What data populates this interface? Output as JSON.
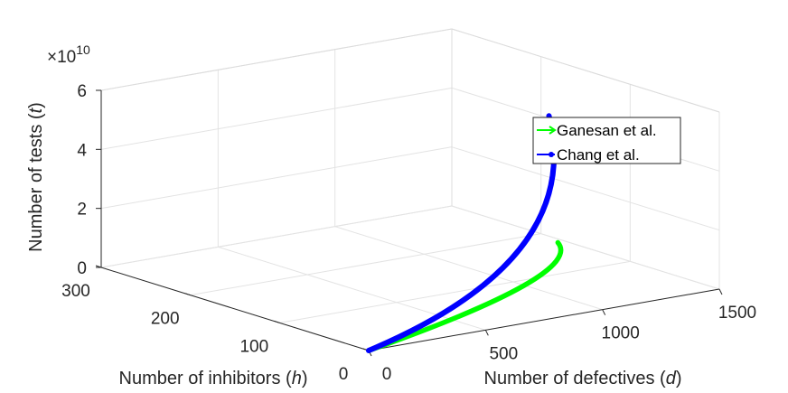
{
  "chart_data": {
    "type": "line",
    "projection": "3d",
    "exponent_label": {
      "prefix": "×10",
      "exponent": "10"
    },
    "xlabel": {
      "pre": "Number of defectives (",
      "var": "d",
      "post": ")"
    },
    "ylabel": {
      "pre": "Number of inhibitors (",
      "var": "h",
      "post": ")"
    },
    "zlabel": {
      "pre": "Number of tests (",
      "var": "t",
      "post": ")"
    },
    "xlim": [
      0,
      1500
    ],
    "ylim": [
      0,
      300
    ],
    "zlim": [
      0,
      6
    ],
    "xticks": [
      "0",
      "500",
      "1000",
      "1500"
    ],
    "yticks": [
      "0",
      "100",
      "200",
      "300"
    ],
    "zticks": [
      "0",
      "2",
      "4",
      "6"
    ],
    "grid": true,
    "legend_position": "right",
    "series": [
      {
        "name": "Ganesan et al.",
        "color": "#00ff00",
        "marker": "arrow",
        "points": [
          [
            0,
            0,
            0
          ],
          [
            1000,
            20,
            1.0
          ],
          [
            1000,
            50,
            1.8
          ]
        ]
      },
      {
        "name": "Chang et al.",
        "color": "#0000ff",
        "marker": "dot",
        "points": [
          [
            0,
            0,
            0
          ],
          [
            1000,
            20,
            1.5
          ],
          [
            1000,
            60,
            6.0
          ]
        ]
      }
    ]
  }
}
